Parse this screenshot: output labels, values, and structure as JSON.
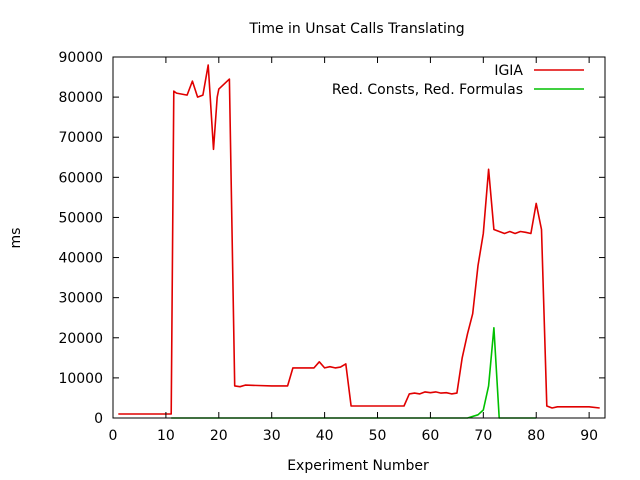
{
  "chart_data": {
    "type": "line",
    "title": "Time in Unsat Calls Translating",
    "xlabel": "Experiment Number",
    "ylabel": "ms",
    "xlim": [
      0,
      93
    ],
    "ylim": [
      0,
      90000
    ],
    "xticks": [
      0,
      10,
      20,
      30,
      40,
      50,
      60,
      70,
      80,
      90
    ],
    "yticks": [
      0,
      10000,
      20000,
      30000,
      40000,
      50000,
      60000,
      70000,
      80000,
      90000
    ],
    "grid": false,
    "legend_position": "top-right",
    "series": [
      {
        "name": "IGIA",
        "color": "#e00000",
        "x": [
          1,
          11,
          11.5,
          12,
          14,
          15,
          16,
          17,
          18,
          19,
          19.7,
          20,
          22,
          23,
          24,
          25,
          30,
          33,
          34,
          38,
          39,
          40,
          41,
          42,
          43,
          44,
          45,
          50,
          55,
          56,
          57,
          58,
          59,
          60,
          61,
          62,
          63,
          64,
          65,
          66,
          67,
          68,
          69,
          70,
          71,
          72,
          73,
          74,
          75,
          76,
          77,
          78,
          79,
          80,
          81,
          82,
          83,
          84,
          85,
          90,
          92
        ],
        "y": [
          1000,
          1000,
          81500,
          81000,
          80500,
          84000,
          80000,
          80500,
          88000,
          67000,
          80000,
          82000,
          84500,
          8000,
          7800,
          8200,
          8000,
          8000,
          12500,
          12500,
          14000,
          12500,
          12800,
          12500,
          12700,
          13500,
          3000,
          3000,
          3000,
          6000,
          6200,
          6000,
          6500,
          6300,
          6500,
          6200,
          6300,
          6000,
          6200,
          15000,
          21000,
          26000,
          38000,
          46000,
          62000,
          47000,
          46500,
          46000,
          46500,
          46000,
          46500,
          46300,
          46000,
          53500,
          47000,
          3000,
          2500,
          2800,
          2800,
          2800,
          2500
        ]
      },
      {
        "name": "Red. Consts, Red. Formulas",
        "color": "#00c000",
        "x": [
          11,
          22,
          33,
          45,
          67,
          69,
          70,
          71,
          72,
          73,
          74,
          80
        ],
        "y": [
          0,
          0,
          0,
          0,
          0,
          800,
          2000,
          8000,
          22500,
          0,
          0,
          0
        ]
      }
    ]
  }
}
